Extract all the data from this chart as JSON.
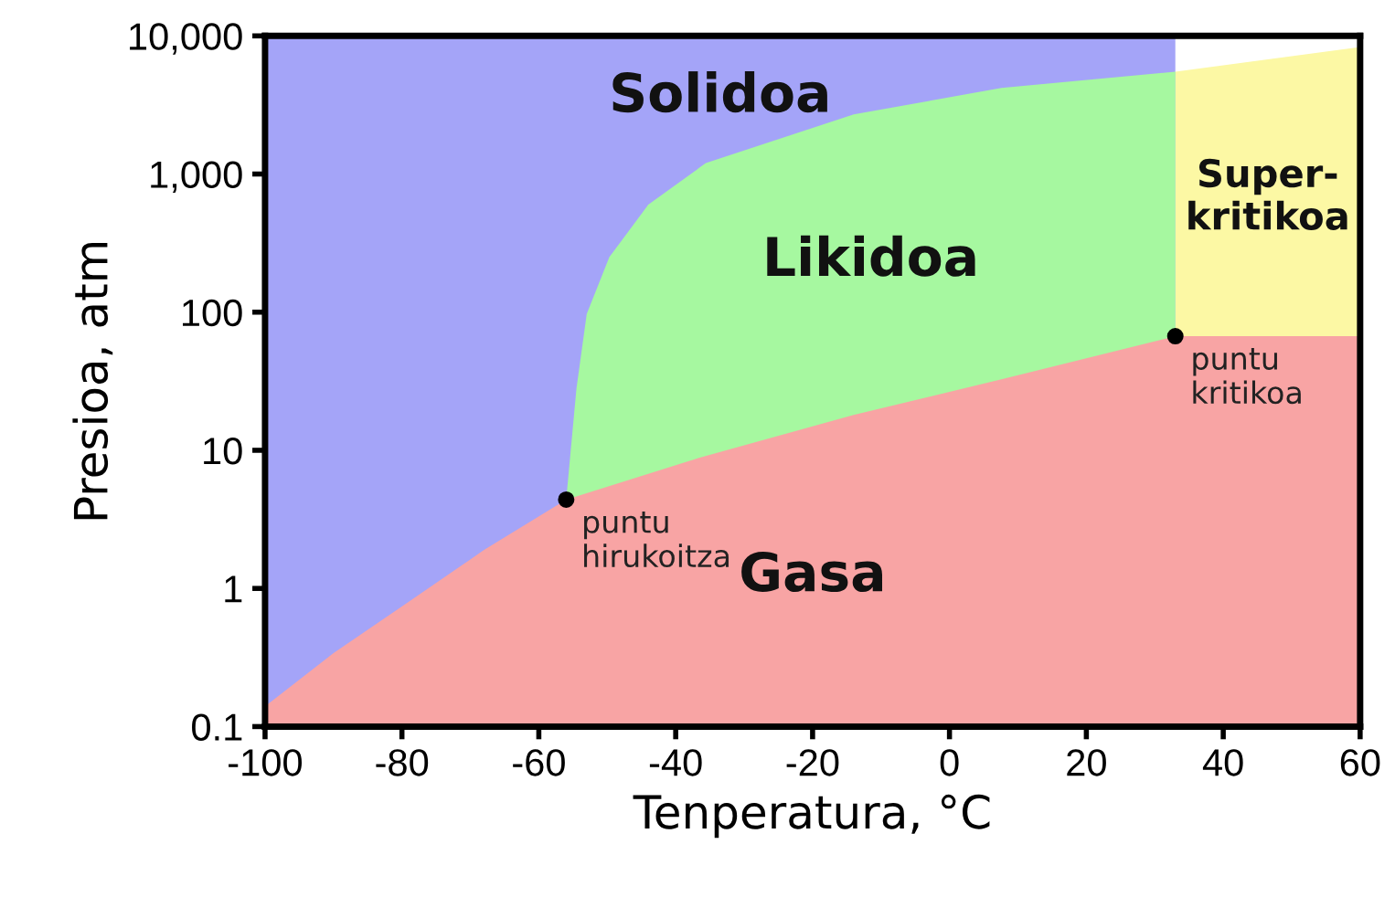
{
  "chart_data": {
    "type": "area",
    "xlabel": "Tenperatura, °C",
    "ylabel": "Presioa, atm",
    "log": "y",
    "xlim": [
      -100,
      60
    ],
    "xticks": [
      -100,
      -80,
      -60,
      -40,
      -20,
      0,
      20,
      40,
      60
    ],
    "ylim": [
      0.1,
      10000
    ],
    "yticks": [
      {
        "value": 0.1,
        "label": "0.1"
      },
      1,
      10,
      100,
      {
        "value": 1000,
        "label": "1,000"
      },
      {
        "value": 10000,
        "label": "10,000"
      }
    ],
    "grid": false,
    "legend": false,
    "series": [
      {
        "name": "Solidoa",
        "color": "#a4a4f8",
        "x": [
          -100,
          33
        ],
        "values": [
          10000,
          10000
        ]
      },
      {
        "name": "Super-\nkritikoa",
        "color": "#fcf8a4",
        "x": [
          33,
          60
        ],
        "values": [
          5500,
          8300
        ]
      },
      {
        "name": "Likidoa",
        "color": "#a6f8a0",
        "x": [
          -56,
          -54.5,
          -53,
          -49.7,
          -44,
          -35.6,
          -14,
          7.6,
          33
        ],
        "values": [
          4.4,
          28,
          97,
          250,
          600,
          1200,
          2700,
          4200,
          5500
        ]
      },
      {
        "name": "Gasa",
        "color": "#f8a4a4",
        "x": [
          -100,
          -90,
          -79,
          -68,
          -56,
          -36,
          -14,
          8,
          33,
          60
        ],
        "values": [
          0.14,
          0.34,
          0.8,
          1.9,
          4.4,
          9,
          18,
          33,
          67,
          67
        ]
      },
      {
        "type": "scatter",
        "color": "#000000",
        "marker": "circle",
        "x": [
          -56,
          33
        ],
        "values": [
          4.4,
          67
        ]
      }
    ],
    "annotations": [
      {
        "text": "puntu\nhirukoitza",
        "x": -56,
        "y": 4.4
      },
      {
        "text": "puntu\nkritikoa",
        "x": 33,
        "y": 67
      }
    ]
  }
}
